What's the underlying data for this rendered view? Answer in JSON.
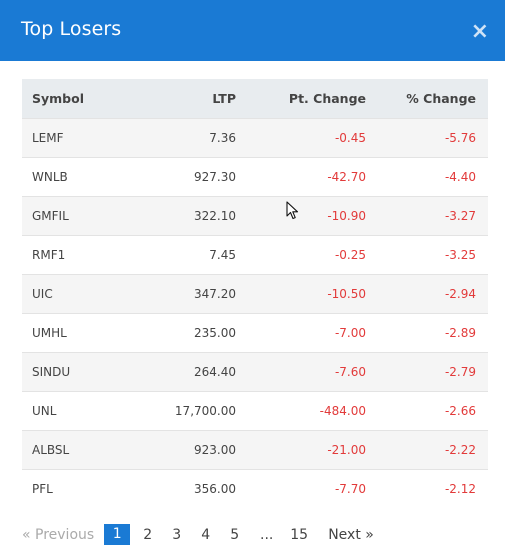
{
  "modal": {
    "title": "Top Losers",
    "close_glyph": "×"
  },
  "table": {
    "headers": [
      "Symbol",
      "LTP",
      "Pt. Change",
      "% Change"
    ],
    "rows": [
      [
        "LEMF",
        "7.36",
        "-0.45",
        "-5.76"
      ],
      [
        "WNLB",
        "927.30",
        "-42.70",
        "-4.40"
      ],
      [
        "GMFIL",
        "322.10",
        "-10.90",
        "-3.27"
      ],
      [
        "RMF1",
        "7.45",
        "-0.25",
        "-3.25"
      ],
      [
        "UIC",
        "347.20",
        "-10.50",
        "-2.94"
      ],
      [
        "UMHL",
        "235.00",
        "-7.00",
        "-2.89"
      ],
      [
        "SINDU",
        "264.40",
        "-7.60",
        "-2.79"
      ],
      [
        "UNL",
        "17,700.00",
        "-484.00",
        "-2.66"
      ],
      [
        "ALBSL",
        "923.00",
        "-21.00",
        "-2.22"
      ],
      [
        "PFL",
        "356.00",
        "-7.70",
        "-2.12"
      ]
    ]
  },
  "pagination": {
    "previous": "« Previous",
    "pages": [
      "1",
      "2",
      "3",
      "4",
      "5"
    ],
    "ellipsis": "...",
    "last": "15",
    "next": "Next »"
  },
  "colors": {
    "header_bg": "#1a7ad4",
    "negative": "#e23a3a"
  },
  "icons": {
    "close": "close-icon",
    "cursor": "mouse-pointer-icon"
  }
}
